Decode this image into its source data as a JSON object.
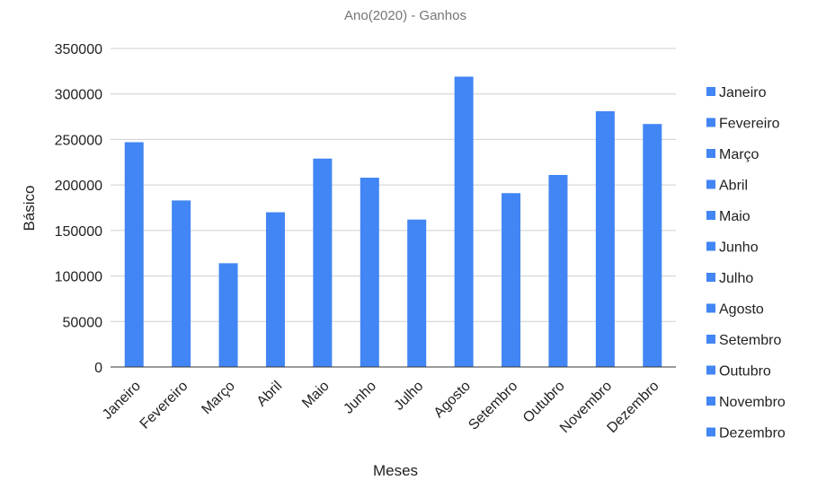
{
  "chart_data": {
    "type": "bar",
    "title": "Ano(2020) - Ganhos",
    "xlabel": "Meses",
    "ylabel": "Básico",
    "categories": [
      "Janeiro",
      "Fevereiro",
      "Março",
      "Abril",
      "Maio",
      "Junho",
      "Julho",
      "Agosto",
      "Setembro",
      "Outubro",
      "Novembro",
      "Dezembro"
    ],
    "values": [
      247000,
      183000,
      114000,
      170000,
      229000,
      208000,
      162000,
      319000,
      191000,
      211000,
      281000,
      267000
    ],
    "ylim": [
      0,
      350000
    ],
    "yticks": [
      0,
      50000,
      100000,
      150000,
      200000,
      250000,
      300000,
      350000
    ],
    "ytick_labels": [
      "0",
      "50000",
      "100000",
      "150000",
      "200000",
      "250000",
      "300000",
      "350000"
    ],
    "grid": true,
    "legend_position": "right",
    "legend": [
      "Janeiro",
      "Fevereiro",
      "Março",
      "Abril",
      "Maio",
      "Junho",
      "Julho",
      "Agosto",
      "Setembro",
      "Outubro",
      "Novembro",
      "Dezembro"
    ],
    "bar_color": "#4285f4"
  }
}
